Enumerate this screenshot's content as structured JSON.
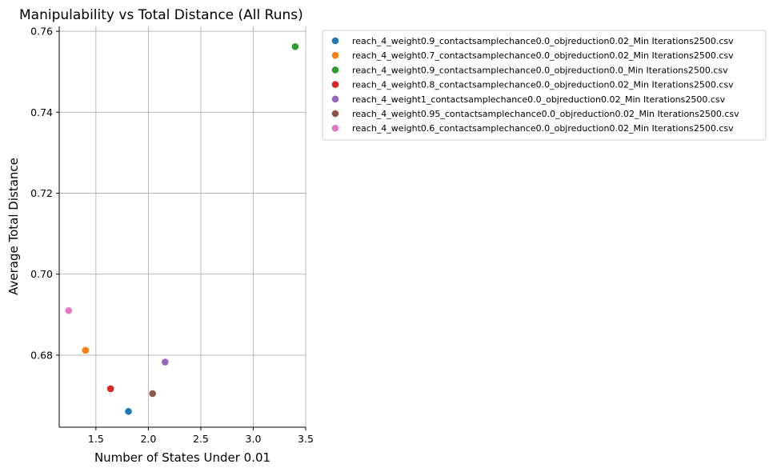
{
  "chart_data": {
    "type": "scatter",
    "title": "Manipulability vs Total Distance (All Runs)",
    "xlabel": "Number of States Under 0.01",
    "ylabel": "Average Total Distance",
    "xlim": [
      1.15,
      3.5
    ],
    "ylim": [
      0.6622,
      0.7612
    ],
    "xticks": [
      1.5,
      2.0,
      2.5,
      3.0,
      3.5
    ],
    "xtick_labels": [
      "1.5",
      "2.0",
      "2.5",
      "3.0",
      "3.5"
    ],
    "yticks": [
      0.68,
      0.7,
      0.72,
      0.74,
      0.76
    ],
    "ytick_labels": [
      "0.68",
      "0.70",
      "0.72",
      "0.74",
      "0.76"
    ],
    "grid": true,
    "legend_position": "outside-right-top",
    "series": [
      {
        "name": "reach_4_weight0.9_contactsamplechance0.0_objreduction0.02_Min Iterations2500.csv",
        "color": "#1f77b4",
        "x": [
          1.81
        ],
        "y": [
          0.6661
        ]
      },
      {
        "name": "reach_4_weight0.7_contactsamplechance0.0_objreduction0.02_Min Iterations2500.csv",
        "color": "#ff7f0e",
        "x": [
          1.4
        ],
        "y": [
          0.6812
        ]
      },
      {
        "name": "reach_4_weight0.9_contactsamplechance0.0_objreduction0.0_Min Iterations2500.csv",
        "color": "#2ca02c",
        "x": [
          3.4
        ],
        "y": [
          0.7562
        ]
      },
      {
        "name": "reach_4_weight0.8_contactsamplechance0.0_objreduction0.02_Min Iterations2500.csv",
        "color": "#d62728",
        "x": [
          1.64
        ],
        "y": [
          0.6717
        ]
      },
      {
        "name": "reach_4_weight1_contactsamplechance0.0_objreduction0.02_Min Iterations2500.csv",
        "color": "#9467bd",
        "x": [
          2.16
        ],
        "y": [
          0.6783
        ]
      },
      {
        "name": "reach_4_weight0.95_contactsamplechance0.0_objreduction0.02_Min Iterations2500.csv",
        "color": "#8c564b",
        "x": [
          2.04
        ],
        "y": [
          0.6705
        ]
      },
      {
        "name": "reach_4_weight0.6_contactsamplechance0.0_objreduction0.02_Min Iterations2500.csv",
        "color": "#e377c2",
        "x": [
          1.24
        ],
        "y": [
          0.691
        ]
      }
    ]
  }
}
